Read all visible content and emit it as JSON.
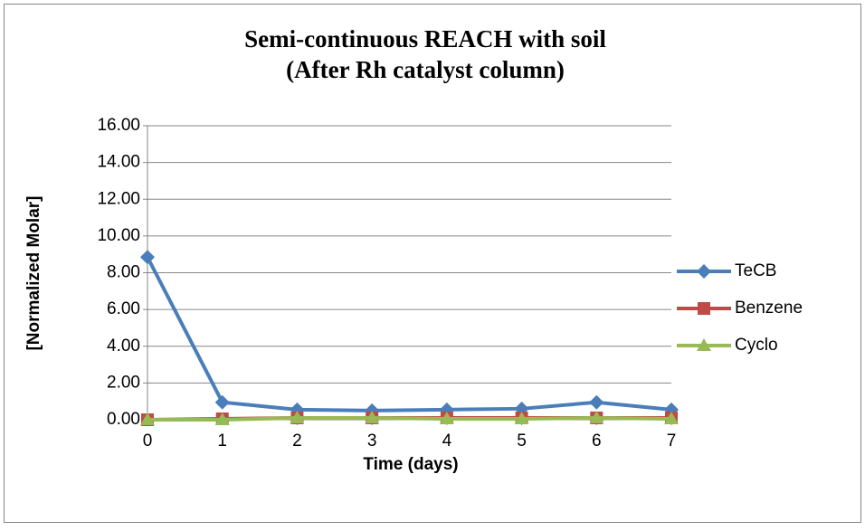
{
  "chart_data": {
    "type": "line",
    "title": [
      "Semi-continuous REACH with soil",
      "(After Rh catalyst column)"
    ],
    "x_label": "Time (days)",
    "y_label": "[Normalized Molar]",
    "categories": [
      "0",
      "1",
      "2",
      "3",
      "4",
      "5",
      "6",
      "7"
    ],
    "series": [
      {
        "name": "TeCB",
        "color": "#4a7ebb",
        "marker": "diamond",
        "values": [
          8.85,
          0.95,
          0.55,
          0.5,
          0.55,
          0.6,
          0.95,
          0.55
        ]
      },
      {
        "name": "Benzene",
        "color": "#be4b48",
        "marker": "square",
        "values": [
          0.0,
          0.05,
          0.1,
          0.1,
          0.1,
          0.1,
          0.1,
          0.1
        ]
      },
      {
        "name": "Cyclo",
        "color": "#98b954",
        "marker": "triangle",
        "values": [
          0.0,
          0.0,
          0.1,
          0.1,
          0.05,
          0.05,
          0.1,
          0.05
        ]
      }
    ],
    "ylim": [
      0,
      16
    ],
    "yticks": [
      {
        "value": 0,
        "label": "0.00"
      },
      {
        "value": 2,
        "label": "2.00"
      },
      {
        "value": 4,
        "label": "4.00"
      },
      {
        "value": 6,
        "label": "6.00"
      },
      {
        "value": 8,
        "label": "8.00"
      },
      {
        "value": 10,
        "label": "10.00"
      },
      {
        "value": 12,
        "label": "12.00"
      },
      {
        "value": 14,
        "label": "14.00"
      },
      {
        "value": 16,
        "label": "16.00"
      }
    ],
    "grid": true,
    "legend": "right"
  }
}
